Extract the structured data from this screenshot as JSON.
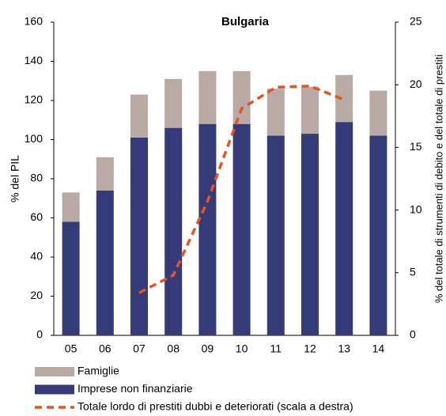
{
  "chart_data": {
    "type": "bar",
    "title": "Bulgaria",
    "stacked": true,
    "y_label": "% del PIL",
    "y2_label": "% del totale di strumenti di debito e del totale di prestiti",
    "categories": [
      "05",
      "06",
      "07",
      "08",
      "09",
      "10",
      "11",
      "12",
      "13",
      "14"
    ],
    "series": [
      {
        "name": "Famiglie",
        "type": "bar",
        "color": "#b9aba3",
        "values": [
          15,
          17,
          22,
          25,
          27,
          27,
          24,
          24,
          24,
          23
        ]
      },
      {
        "name": "Imprese non finanziarie",
        "type": "bar",
        "color": "#353a78",
        "values": [
          58,
          74,
          101,
          106,
          108,
          108,
          102,
          103,
          109,
          102
        ]
      },
      {
        "name": "Totale lordo di prestiti dubbi e deteriorati (scala a destra)",
        "type": "line",
        "axis": "y2",
        "color": "#e8541f",
        "values": [
          null,
          null,
          3.4,
          4.8,
          10.7,
          18.1,
          19.8,
          19.9,
          18.8,
          null
        ]
      }
    ],
    "ylim": [
      0,
      160
    ],
    "yticks": [
      0,
      20,
      40,
      60,
      80,
      100,
      120,
      140,
      160
    ],
    "y2lim": [
      0,
      25
    ],
    "y2ticks": [
      0,
      5,
      10,
      15,
      20,
      25
    ]
  }
}
